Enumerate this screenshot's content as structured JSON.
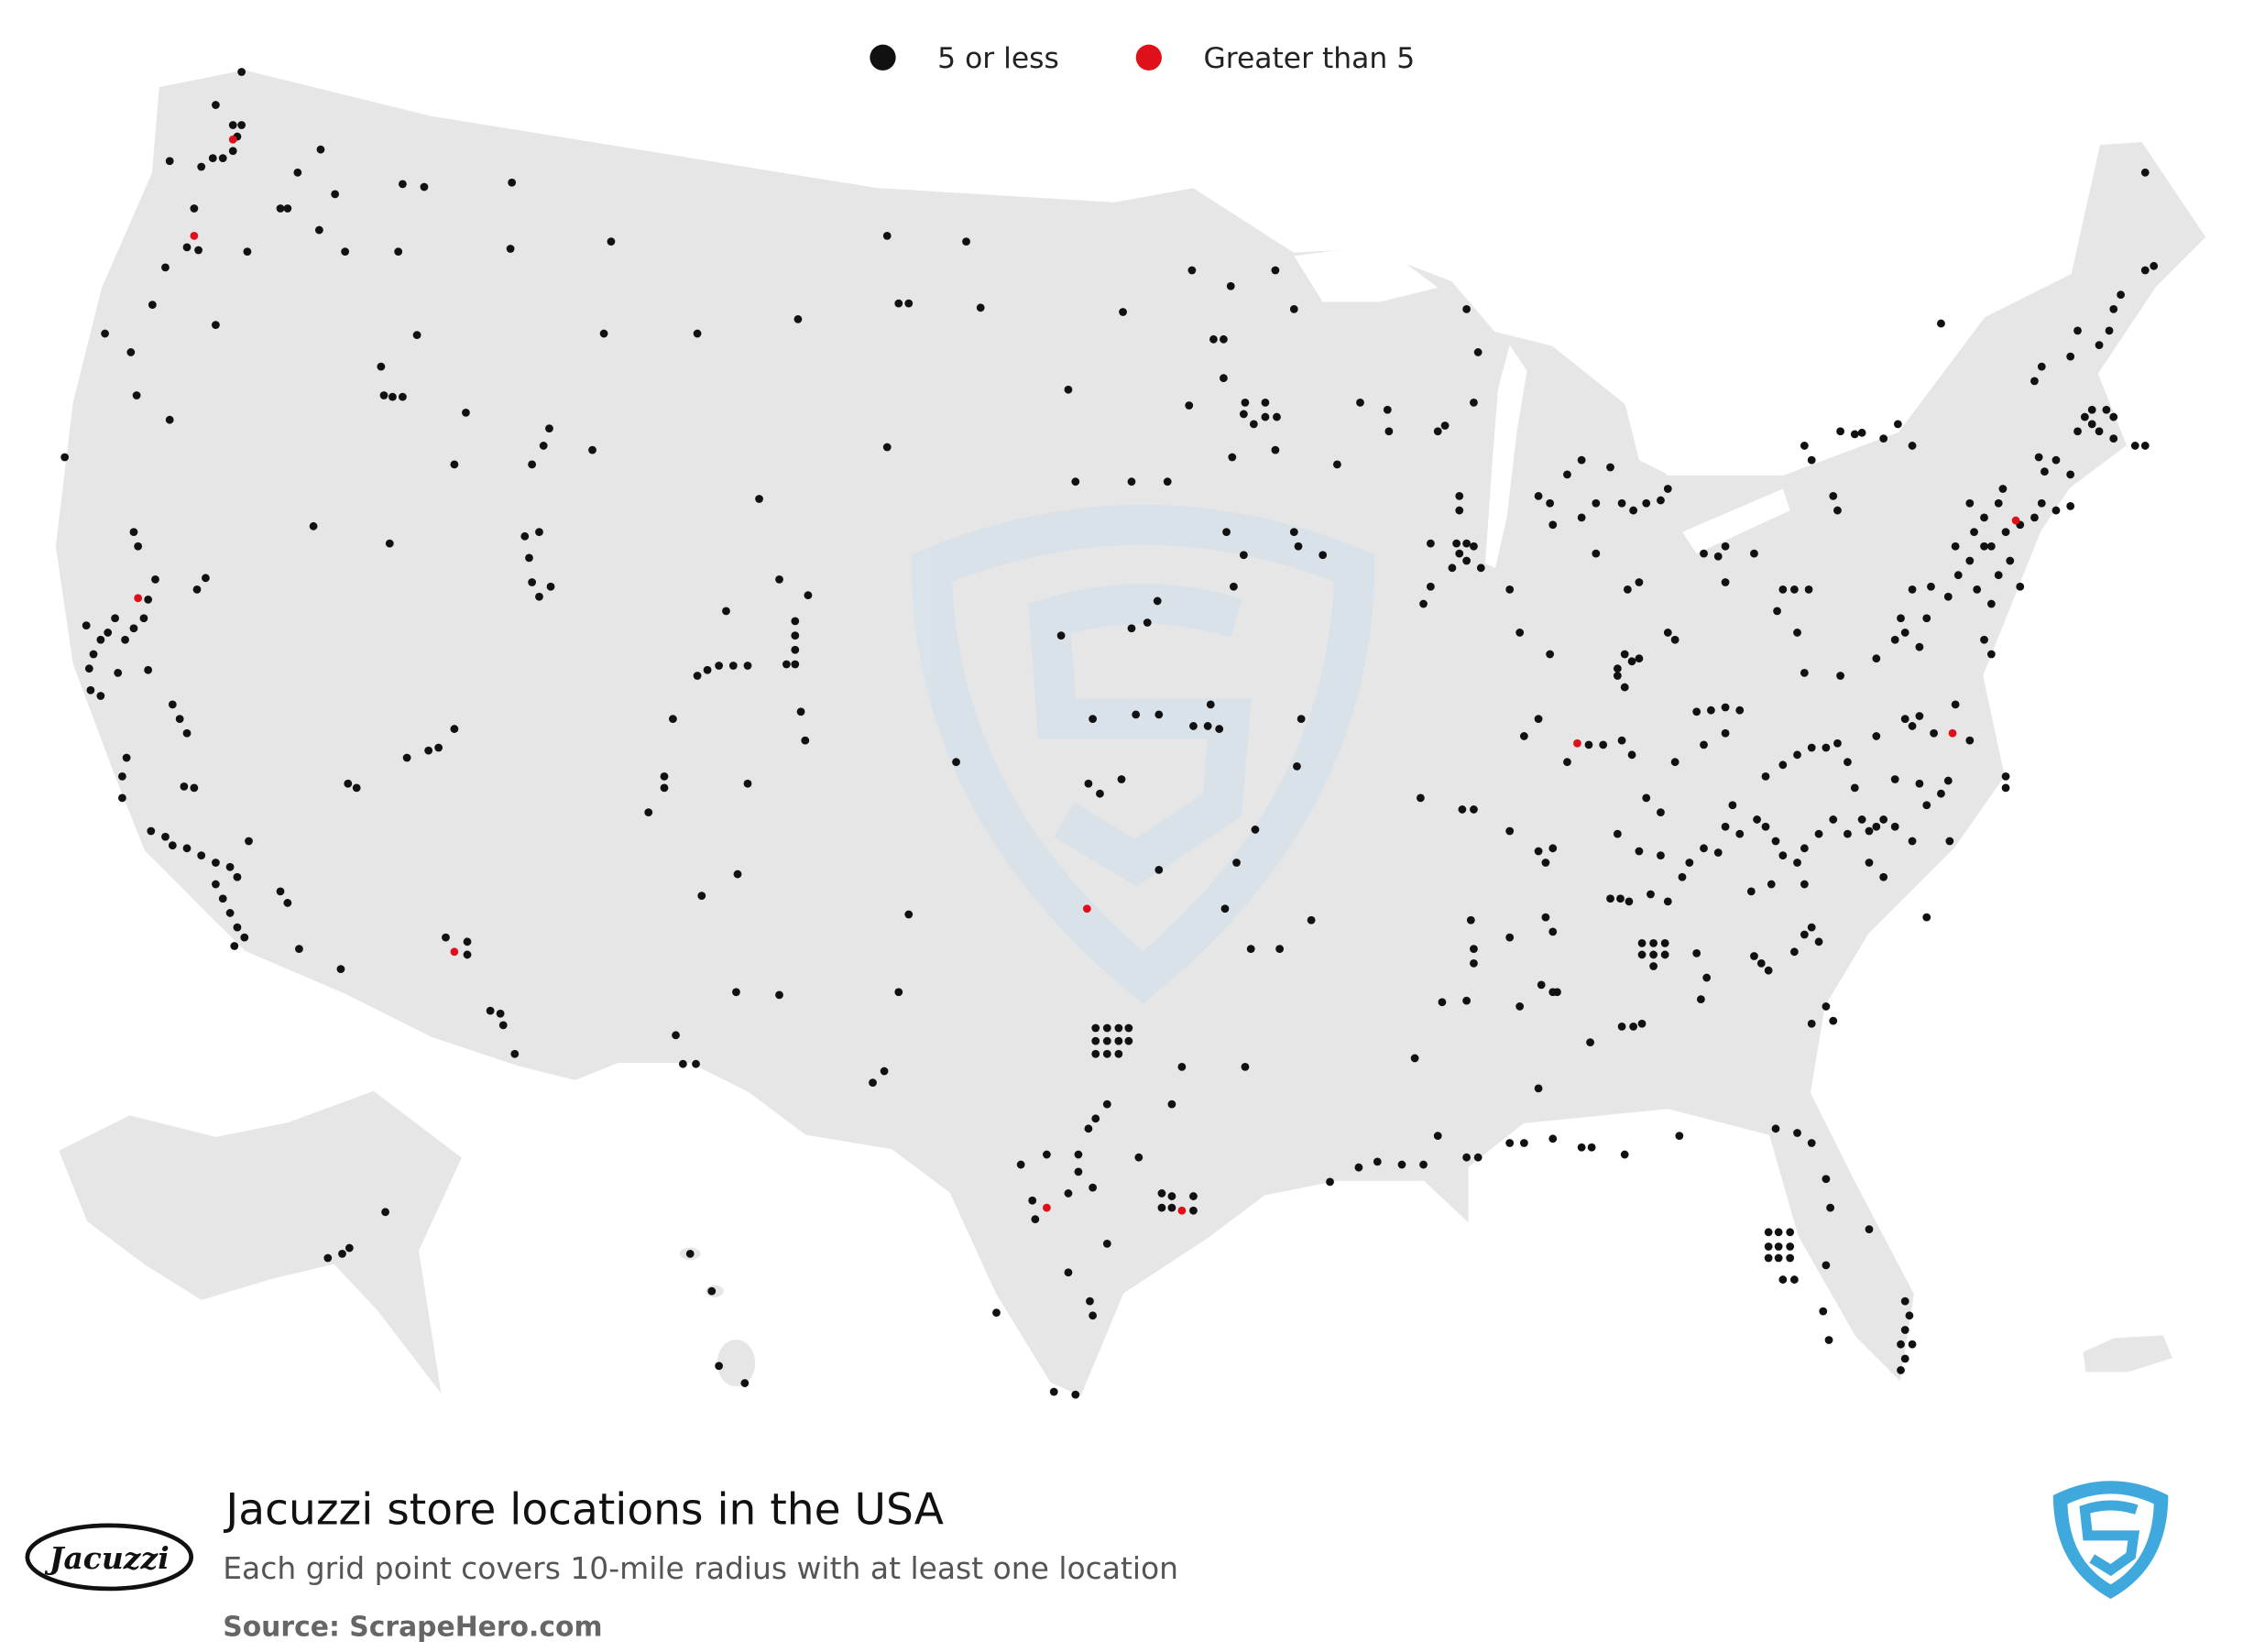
{
  "legend": [
    {
      "label": "5 or less",
      "color": "#111111"
    },
    {
      "label": "Greater than 5",
      "color": "#e0101a"
    }
  ],
  "title": "Jacuzzi store locations in the USA",
  "subtitle": "Each grid point covers 10-mile radius with at least one location",
  "source": "Source: ScrapeHero.com",
  "brand_logo": "Jacuzzi"
}
